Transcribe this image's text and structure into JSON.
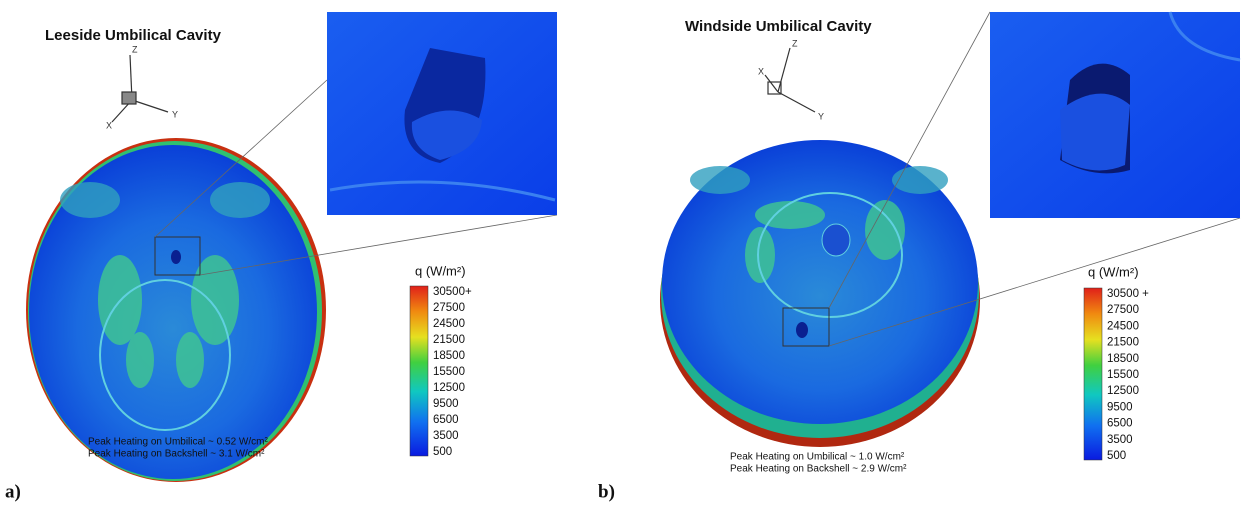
{
  "panels": [
    {
      "label": "a)",
      "title": "Leeside Umbilical Cavity",
      "axes": [
        "Z",
        "Y",
        "X"
      ],
      "colorbar": {
        "title": "q (W/m²)",
        "ticks": [
          "30500+",
          "27500",
          "24500",
          "21500",
          "18500",
          "15500",
          "12500",
          "9500",
          "6500",
          "3500",
          "500"
        ]
      },
      "notes": [
        "Peak Heating on Umbilical ~ 0.52 W/cm²",
        "Peak Heating on Backshell ~ 3.1 W/cm²"
      ]
    },
    {
      "label": "b)",
      "title": "Windside Umbilical Cavity",
      "axes": [
        "Z",
        "Y",
        "X"
      ],
      "colorbar": {
        "title": "q (W/m²)",
        "ticks": [
          "30500 +",
          "27500",
          "24500",
          "21500",
          "18500",
          "15500",
          "12500",
          "9500",
          "6500",
          "3500",
          "500"
        ]
      },
      "notes": [
        "Peak Heating on Umbilical ~ 1.0 W/cm²",
        "Peak Heating on Backshell ~ 2.9 W/cm²"
      ]
    }
  ]
}
